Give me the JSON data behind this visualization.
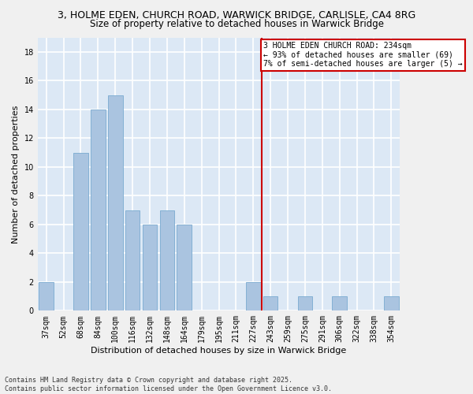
{
  "title1": "3, HOLME EDEN, CHURCH ROAD, WARWICK BRIDGE, CARLISLE, CA4 8RG",
  "title2": "Size of property relative to detached houses in Warwick Bridge",
  "xlabel": "Distribution of detached houses by size in Warwick Bridge",
  "ylabel": "Number of detached properties",
  "categories": [
    "37sqm",
    "52sqm",
    "68sqm",
    "84sqm",
    "100sqm",
    "116sqm",
    "132sqm",
    "148sqm",
    "164sqm",
    "179sqm",
    "195sqm",
    "211sqm",
    "227sqm",
    "243sqm",
    "259sqm",
    "275sqm",
    "291sqm",
    "306sqm",
    "322sqm",
    "338sqm",
    "354sqm"
  ],
  "values": [
    2,
    0,
    11,
    14,
    15,
    7,
    6,
    7,
    6,
    0,
    0,
    0,
    2,
    1,
    0,
    1,
    0,
    1,
    0,
    0,
    1
  ],
  "bar_color": "#aac4e0",
  "bar_edge_color": "#7aaad0",
  "vline_x": 12.5,
  "vline_color": "#cc0000",
  "annotation_text": "3 HOLME EDEN CHURCH ROAD: 234sqm\n← 93% of detached houses are smaller (69)\n7% of semi-detached houses are larger (5) →",
  "annotation_box_color": "#cc0000",
  "ylim": [
    0,
    19
  ],
  "yticks": [
    0,
    2,
    4,
    6,
    8,
    10,
    12,
    14,
    16,
    18
  ],
  "footer": "Contains HM Land Registry data © Crown copyright and database right 2025.\nContains public sector information licensed under the Open Government Licence v3.0.",
  "fig_bg_color": "#f0f0f0",
  "plot_bg_color": "#dce8f5",
  "grid_color": "#ffffff",
  "title_fontsize": 9,
  "subtitle_fontsize": 8.5,
  "tick_fontsize": 7,
  "label_fontsize": 8,
  "footer_fontsize": 6,
  "annot_fontsize": 7
}
